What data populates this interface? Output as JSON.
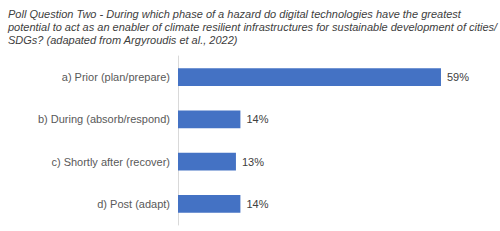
{
  "chart_data": {
    "type": "bar",
    "orientation": "horizontal",
    "title": "Poll Question Two - During which phase of a hazard do digital technologies have the greatest potential to act as an enabler of climate resilient infrastructures for sustainable development of cities/SDGs? (adapated from Argyroudis et al., 2022)",
    "categories": [
      "a) Prior (plan/prepare)",
      "b) During (absorb/respond)",
      "c) Shortly after (recover)",
      "d) Post (adapt)"
    ],
    "values": [
      59,
      14,
      13,
      14
    ],
    "value_labels": [
      "59%",
      "14%",
      "13%",
      "14%"
    ],
    "color": "#4472c4",
    "xlim": [
      0,
      70
    ],
    "grid": false,
    "data_labels": true,
    "tick_labels": "y"
  }
}
